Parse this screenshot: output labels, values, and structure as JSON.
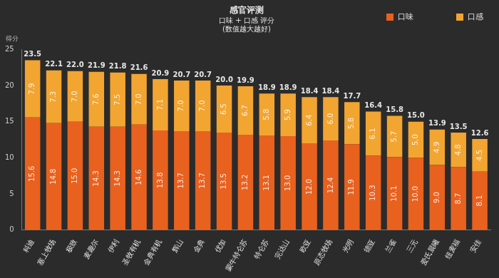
{
  "chart_data": {
    "type": "bar",
    "title": "感官评测",
    "subtitle": "口味 + 口感 评分",
    "note": "(数值越大越好)",
    "y_label": "得分",
    "categories": [
      "科迪",
      "塞上牧场",
      "极致",
      "麦趣尔",
      "伊利",
      "圣牧有机",
      "金典有机",
      "辉山",
      "金典",
      "优加",
      "蒙牛特仑苏",
      "特仑苏",
      "完达山",
      "欧亚",
      "原态牧场",
      "光明",
      "德亚",
      "兰雀",
      "三元",
      "爱氏晨曦",
      "纽麦福",
      "安佳"
    ],
    "series": [
      {
        "name": "口味",
        "color": "#e8611f",
        "values": [
          15.6,
          14.8,
          15.0,
          14.3,
          14.3,
          14.6,
          13.8,
          13.7,
          13.7,
          13.5,
          13.2,
          13.1,
          13.0,
          12.0,
          12.4,
          11.9,
          10.3,
          10.1,
          10.0,
          9.0,
          8.7,
          8.1
        ],
        "value_labels": [
          "15.6",
          "14.8",
          "15.0",
          "14.3",
          "14.3",
          "14.6",
          "13.8",
          "13.7",
          "13.7",
          "13.5",
          "13.2",
          "13.1",
          "13.0",
          "12.0",
          "12.4",
          "11.9",
          "10.3",
          "10.1",
          "10.0",
          "9.0",
          "8.7",
          "8.1"
        ]
      },
      {
        "name": "口感",
        "color": "#f2a531",
        "values": [
          7.9,
          7.3,
          7.0,
          7.6,
          7.5,
          7.0,
          7.1,
          7.0,
          7.0,
          6.5,
          6.7,
          5.8,
          5.9,
          6.4,
          6.0,
          5.8,
          6.1,
          5.7,
          5.0,
          4.9,
          4.8,
          4.5
        ],
        "value_labels": [
          "7.9",
          "7.3",
          "7.0",
          "7.6",
          "7.5",
          "7.0",
          "7.1",
          "7.0",
          "7.0",
          "6.5",
          "6.7",
          "5.8",
          "5.9",
          "6.4",
          "6.0",
          "5.8",
          "6.1",
          "5.7",
          "5.0",
          "4.9",
          "4.8",
          "4.5"
        ]
      }
    ],
    "totals": {
      "values": [
        23.5,
        22.1,
        22.0,
        21.9,
        21.8,
        21.6,
        20.9,
        20.7,
        20.7,
        20.0,
        19.9,
        18.9,
        18.9,
        18.4,
        18.4,
        17.7,
        16.4,
        15.8,
        15.0,
        13.9,
        13.5,
        12.6
      ],
      "value_labels": [
        "23.5",
        "22.1",
        "22.0",
        "21.9",
        "21.8",
        "21.6",
        "20.9",
        "20.7",
        "20.7",
        "20.0",
        "19.9",
        "18.9",
        "18.9",
        "18.4",
        "18.4",
        "17.7",
        "16.4",
        "15.8",
        "15.0",
        "13.9",
        "13.5",
        "12.6"
      ]
    },
    "stacked": true,
    "data_labels": true,
    "grid": false,
    "legend": "top-right",
    "ylim": [
      0,
      25
    ],
    "yticks": [
      0,
      5,
      10,
      15,
      20,
      25
    ]
  }
}
